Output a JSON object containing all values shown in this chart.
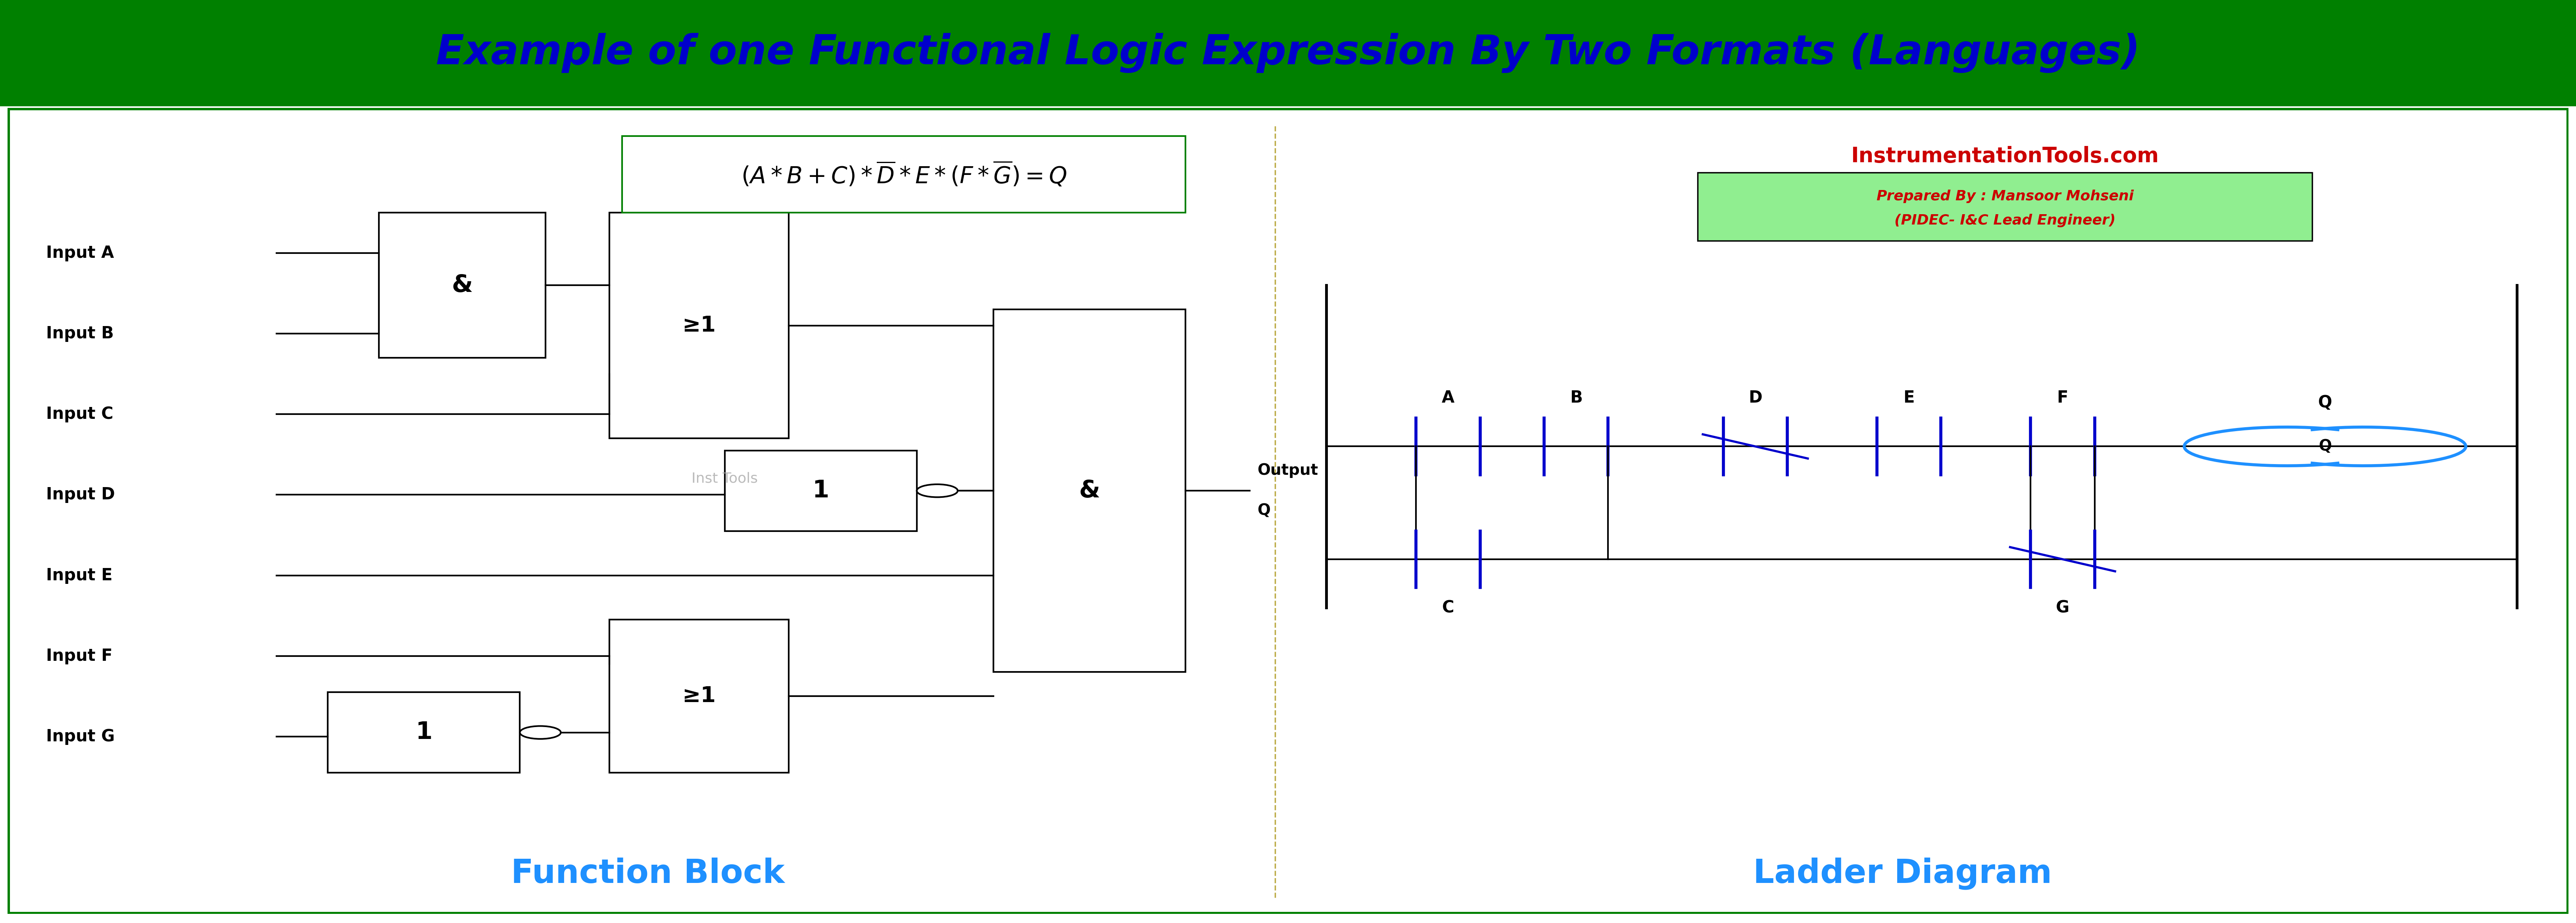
{
  "title": "Example of one Functional Logic Expression By Two Formats (Languages)",
  "title_color": "#0000CC",
  "title_bg": "#008000",
  "border_color": "#008000",
  "watermark": "Inst Tools",
  "watermark_color": "#AAAAAA",
  "website": "InstrumentationTools.com",
  "website_color": "#CC0000",
  "author_line1": "Prepared By : Mansoor Mohseni",
  "author_line2": "(PIDEC- I&C Lead Engineer)",
  "author_bg": "#90EE90",
  "fb_label": "Function Block",
  "ld_label": "Ladder Diagram",
  "label_color": "#1E90FF",
  "output_label1": "Output",
  "output_label2": "Q"
}
